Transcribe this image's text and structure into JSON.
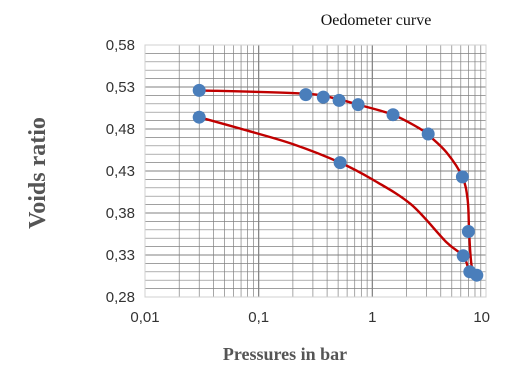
{
  "chart_data": {
    "type": "scatter",
    "title": "Oedometer curve",
    "xlabel": "Pressures in bar",
    "ylabel": "Voids ratio",
    "x_scale": "log",
    "xlim": [
      0.01,
      10
    ],
    "ylim": [
      0.28,
      0.58
    ],
    "x_ticks": [
      0.01,
      0.1,
      1,
      10
    ],
    "x_tick_labels": [
      "0,01",
      "0,1",
      "1",
      "10"
    ],
    "y_ticks": [
      0.28,
      0.33,
      0.38,
      0.43,
      0.48,
      0.53,
      0.58
    ],
    "y_tick_labels": [
      "0,28",
      "0,33",
      "0,38",
      "0,43",
      "0,48",
      "0,53",
      "0,58"
    ],
    "grid": true,
    "legend": "none",
    "colors": {
      "marker": "#4a7ebb",
      "trend_line": "#c00000",
      "grid": "#808080",
      "plot_border": "#d0d0d0"
    },
    "series": [
      {
        "points": [
          {
            "x": 0.03,
            "y": 0.526
          },
          {
            "x": 0.26,
            "y": 0.521
          },
          {
            "x": 0.37,
            "y": 0.518
          },
          {
            "x": 0.51,
            "y": 0.514
          },
          {
            "x": 0.75,
            "y": 0.509
          },
          {
            "x": 1.52,
            "y": 0.497
          },
          {
            "x": 3.1,
            "y": 0.474
          },
          {
            "x": 6.2,
            "y": 0.423
          },
          {
            "x": 7.0,
            "y": 0.358
          },
          {
            "x": 6.3,
            "y": 0.329
          },
          {
            "x": 7.2,
            "y": 0.31
          },
          {
            "x": 8.3,
            "y": 0.306
          },
          {
            "x": 0.52,
            "y": 0.44
          },
          {
            "x": 0.03,
            "y": 0.494
          }
        ]
      }
    ],
    "trend_path": [
      {
        "x": 0.03,
        "y": 0.526
      },
      {
        "x": 0.26,
        "y": 0.522
      },
      {
        "x": 0.51,
        "y": 0.515
      },
      {
        "x": 0.75,
        "y": 0.509
      },
      {
        "x": 1.52,
        "y": 0.497
      },
      {
        "x": 2.5,
        "y": 0.482
      },
      {
        "x": 3.1,
        "y": 0.473
      },
      {
        "x": 4.5,
        "y": 0.452
      },
      {
        "x": 6.2,
        "y": 0.423
      },
      {
        "x": 6.9,
        "y": 0.395
      },
      {
        "x": 7.1,
        "y": 0.358
      },
      {
        "x": 7.3,
        "y": 0.33
      },
      {
        "x": 7.6,
        "y": 0.312
      },
      {
        "x": 8.3,
        "y": 0.306
      },
      {
        "x": 7.2,
        "y": 0.31
      },
      {
        "x": 6.3,
        "y": 0.329
      },
      {
        "x": 4.5,
        "y": 0.345
      },
      {
        "x": 2.2,
        "y": 0.39
      },
      {
        "x": 1.0,
        "y": 0.42
      },
      {
        "x": 0.52,
        "y": 0.44
      },
      {
        "x": 0.2,
        "y": 0.462
      },
      {
        "x": 0.08,
        "y": 0.478
      },
      {
        "x": 0.03,
        "y": 0.494
      }
    ]
  }
}
